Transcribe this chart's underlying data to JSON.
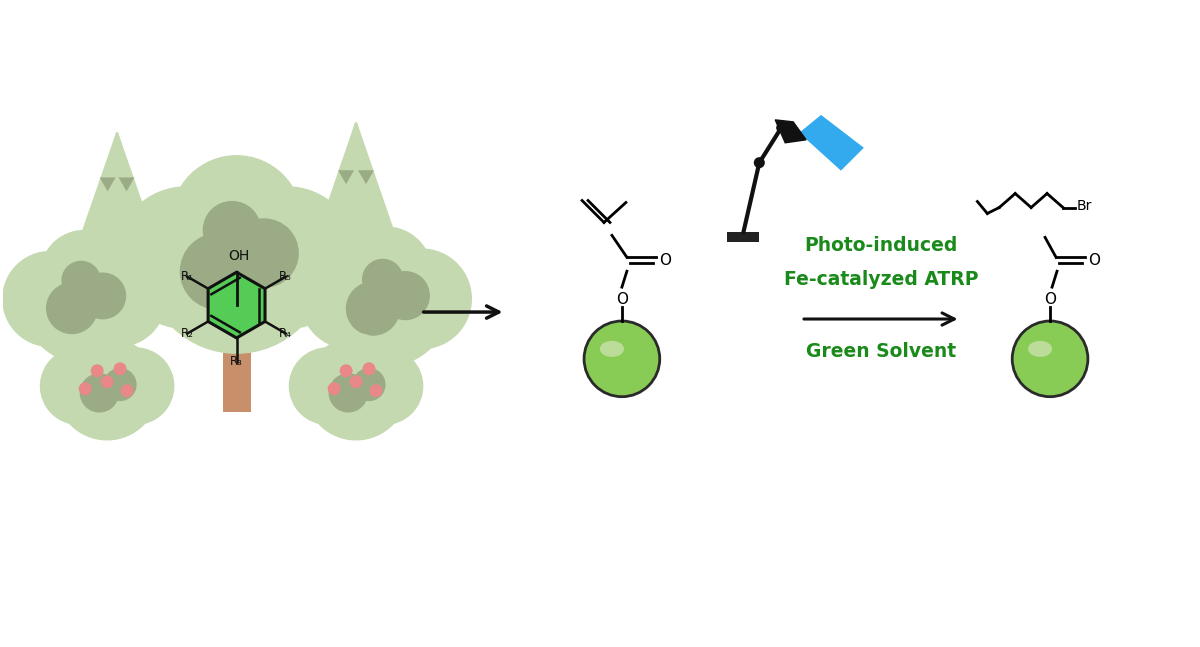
{
  "bg_color": "#ffffff",
  "tree_green_light": "#c5d9b0",
  "tree_green_mid": "#b8cc9f",
  "tree_shadow": "#9aab85",
  "trunk_color": "#c8906a",
  "bush_green": "#c5d9b0",
  "bush_shadow": "#9aab85",
  "berry_color": "#e88888",
  "benzene_green": "#55cc55",
  "benzene_stroke": "#111111",
  "arrow_color": "#111111",
  "lamp_black": "#111111",
  "lamp_base": "#222222",
  "blue_beam": "#33aaee",
  "sphere_green": "#88cc55",
  "sphere_highlight": "#bbdd99",
  "sphere_stroke": "#2a2a2a",
  "text_green": "#1a8a1a",
  "text_black": "#111111",
  "line_lw": 2.0,
  "photo_text": "Photo-induced",
  "fe_text": "Fe-catalyzed ATRP",
  "solvent_text": "Green Solvent"
}
